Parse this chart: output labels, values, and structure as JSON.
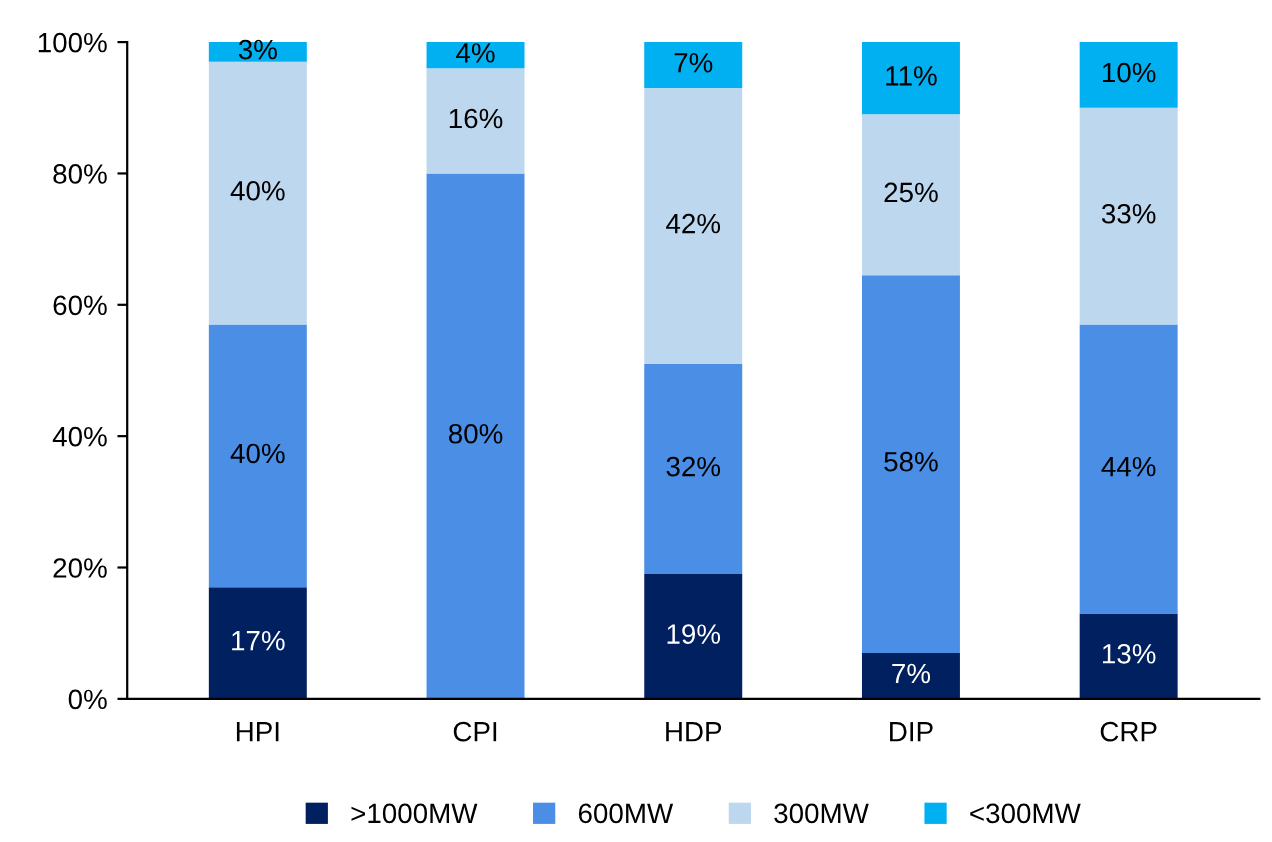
{
  "chart_data": {
    "type": "bar",
    "stacked": true,
    "categories": [
      "HPI",
      "CPI",
      "HDP",
      "DIP",
      "CRP"
    ],
    "series": [
      {
        "name": ">1000MW",
        "color": "#002060",
        "values": [
          17,
          0,
          19,
          7,
          13
        ],
        "value_labels": [
          "17%",
          null,
          "19%",
          "7%",
          "13%"
        ]
      },
      {
        "name": "600MW",
        "color": "#4a8ee6",
        "values": [
          40,
          80,
          32,
          57.5,
          44
        ],
        "value_labels": [
          "40%",
          "80%",
          "32%",
          "58%",
          "44%"
        ]
      },
      {
        "name": "300MW",
        "color": "#bdd7ee",
        "values": [
          40,
          16,
          42,
          24.5,
          33
        ],
        "value_labels": [
          "40%",
          "16%",
          "42%",
          "25%",
          "33%"
        ]
      },
      {
        "name": "<300MW",
        "color": "#00b0f0",
        "values": [
          3,
          4,
          7,
          11,
          10
        ],
        "value_labels": [
          "3%",
          "4%",
          "7%",
          "11%",
          "10%"
        ]
      }
    ],
    "ylim": [
      0,
      100
    ],
    "yticks": [
      {
        "value": 0,
        "label": "0%"
      },
      {
        "value": 20,
        "label": "20%"
      },
      {
        "value": 40,
        "label": "40%"
      },
      {
        "value": 60,
        "label": "60%"
      },
      {
        "value": 80,
        "label": "80%"
      },
      {
        "value": 100,
        "label": "100%"
      }
    ],
    "grid": false,
    "legend": "bottom"
  }
}
